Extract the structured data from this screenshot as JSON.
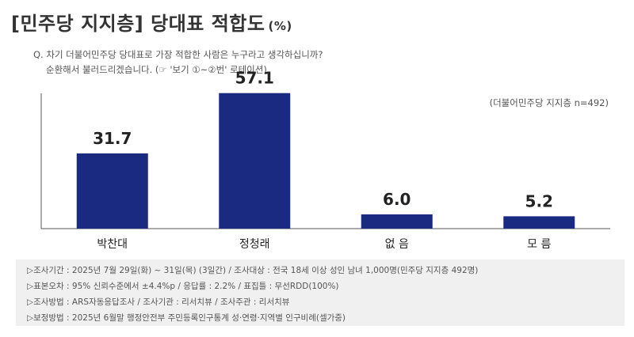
{
  "header": {
    "title": "[민주당 지지층] 당대표 적합도",
    "unit": "(%)"
  },
  "question": {
    "line1": "Q. 차기 더불어민주당 당대표로 가장 적합한 사람은 누구라고 생각하십니까?",
    "line2": "순환해서 불러드리겠습니다. (☞ '보기 ①~②번' 로테이션)"
  },
  "sample_note": "(더불어민주당 지지층 n=492)",
  "chart_data": {
    "type": "bar",
    "categories": [
      "박찬대",
      "정청래",
      "없 음",
      "모 름"
    ],
    "values": [
      31.7,
      57.1,
      6.0,
      5.2
    ],
    "value_labels": [
      "31.7",
      "57.1",
      "6.0",
      "5.2"
    ],
    "ylim": [
      0,
      60
    ],
    "bar_color": "#1a2a80",
    "grid": false,
    "legend": "none"
  },
  "footer": {
    "rows": [
      "조사기간 : 2025년 7월 29일(화) ~ 31일(목) (3일간) / 조사대상 : 전국 18세 이상 성인 남녀 1,000명(민주당 지지층 492명)",
      "표본오차 : 95% 신뢰수준에서 ±4.4%p / 응답률 : 2.2% / 표집틀 : 무선RDD(100%)",
      "조사방법 : ARS자동응답조사 / 조사기관 : 리서치뷰 / 조사주관 : 리서치뷰",
      "보정방법 : 2025년 6월말 행정안전부 주민등록인구통계 성·연령·지역별 인구비례(셀가중)"
    ]
  }
}
